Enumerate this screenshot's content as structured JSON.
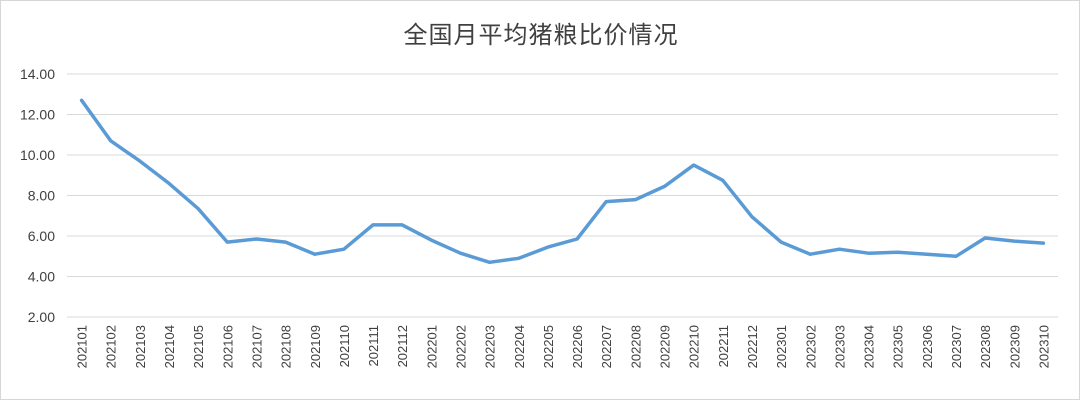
{
  "chart_data": {
    "type": "line",
    "title": "全国月平均猪粮比价情况",
    "xlabel": "",
    "ylabel": "",
    "ylim": [
      2,
      14
    ],
    "yticks": [
      "2.00",
      "4.00",
      "6.00",
      "8.00",
      "10.00",
      "12.00",
      "14.00"
    ],
    "grid": true,
    "legend": "none",
    "line_color": "#5b9bd5",
    "categories": [
      "202101",
      "202102",
      "202103",
      "202104",
      "202105",
      "202106",
      "202107",
      "202108",
      "202109",
      "202110",
      "202111",
      "202112",
      "202201",
      "202202",
      "202203",
      "202204",
      "202205",
      "202206",
      "202207",
      "202208",
      "202209",
      "202210",
      "202211",
      "202212",
      "202301",
      "202302",
      "202303",
      "202304",
      "202305",
      "202306",
      "202307",
      "202308",
      "202309",
      "202310"
    ],
    "series": [
      {
        "values": [
          12.7,
          10.7,
          9.7,
          8.6,
          7.35,
          5.7,
          5.85,
          5.7,
          5.1,
          5.35,
          6.55,
          6.55,
          5.8,
          5.15,
          4.7,
          4.9,
          5.45,
          5.85,
          7.7,
          7.8,
          8.45,
          9.5,
          8.75,
          6.95,
          5.7,
          5.1,
          5.35,
          5.15,
          5.2,
          5.1,
          5.0,
          5.9,
          5.75,
          5.65
        ]
      }
    ]
  }
}
